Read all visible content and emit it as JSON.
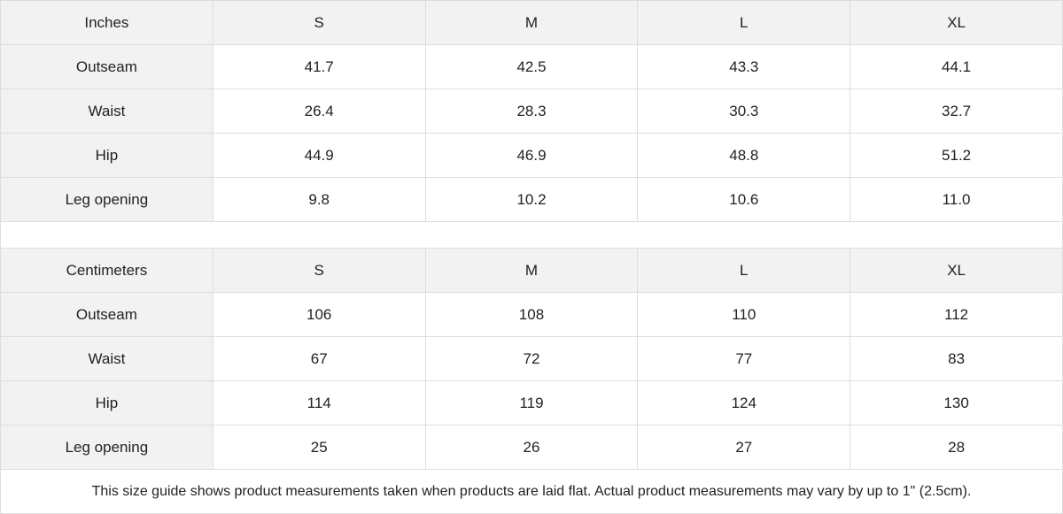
{
  "tables": [
    {
      "unit": "Inches",
      "sizes": [
        "S",
        "M",
        "L",
        "XL"
      ],
      "rows": [
        {
          "label": "Outseam",
          "values": [
            "41.7",
            "42.5",
            "43.3",
            "44.1"
          ]
        },
        {
          "label": "Waist",
          "values": [
            "26.4",
            "28.3",
            "30.3",
            "32.7"
          ]
        },
        {
          "label": "Hip",
          "values": [
            "44.9",
            "46.9",
            "48.8",
            "51.2"
          ]
        },
        {
          "label": "Leg opening",
          "values": [
            "9.8",
            "10.2",
            "10.6",
            "11.0"
          ]
        }
      ]
    },
    {
      "unit": "Centimeters",
      "sizes": [
        "S",
        "M",
        "L",
        "XL"
      ],
      "rows": [
        {
          "label": "Outseam",
          "values": [
            "106",
            "108",
            "110",
            "112"
          ]
        },
        {
          "label": "Waist",
          "values": [
            "67",
            "72",
            "77",
            "83"
          ]
        },
        {
          "label": "Hip",
          "values": [
            "114",
            "119",
            "124",
            "130"
          ]
        },
        {
          "label": "Leg opening",
          "values": [
            "25",
            "26",
            "27",
            "28"
          ]
        }
      ]
    }
  ],
  "note": "This size guide shows product measurements taken when products are laid flat.  Actual product measurements may vary by up to 1\" (2.5cm)."
}
